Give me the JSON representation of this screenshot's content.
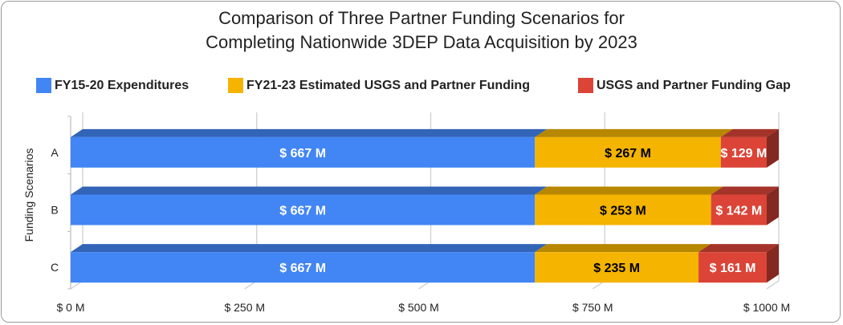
{
  "chart_data": {
    "type": "bar",
    "orientation": "horizontal",
    "stacked": true,
    "three_d": true,
    "title": "Comparison of Three Partner Funding Scenarios for Completing Nationwide 3DEP Data Acquisition by 2023",
    "title_lines": [
      "Comparison of Three Partner Funding Scenarios for",
      "Completing Nationwide 3DEP Data Acquisition by 2023"
    ],
    "ylabel": "Funding Scenarios",
    "xlabel": "",
    "categories": [
      "A",
      "B",
      "C"
    ],
    "xlim": [
      0,
      1000
    ],
    "x_ticks": [
      0,
      250,
      500,
      750,
      1000
    ],
    "x_tick_labels": [
      "$ 0 M",
      "$ 250 M",
      "$ 500 M",
      "$ 750 M",
      "$ 1000 M"
    ],
    "grid": true,
    "legend_position": "top",
    "series": [
      {
        "name": "FY15-20 Expenditures",
        "values": [
          667,
          667,
          667
        ],
        "labels": [
          "$ 667 M",
          "$ 667 M",
          "$ 667 M"
        ],
        "color": "#4285f4",
        "label_color": "#ffffff"
      },
      {
        "name": "FY21-23 Estimated USGS and Partner Funding",
        "values": [
          267,
          253,
          235
        ],
        "labels": [
          "$ 267 M",
          "$ 253 M",
          "$ 235 M"
        ],
        "color": "#f4b400",
        "label_color": "#000000"
      },
      {
        "name": "USGS and Partner Funding Gap",
        "values": [
          129,
          142,
          161
        ],
        "labels": [
          "$ 129 M",
          "$ 142 M",
          "$ 161 M"
        ],
        "color": "#db4437",
        "label_color": "#ffffff"
      }
    ]
  }
}
